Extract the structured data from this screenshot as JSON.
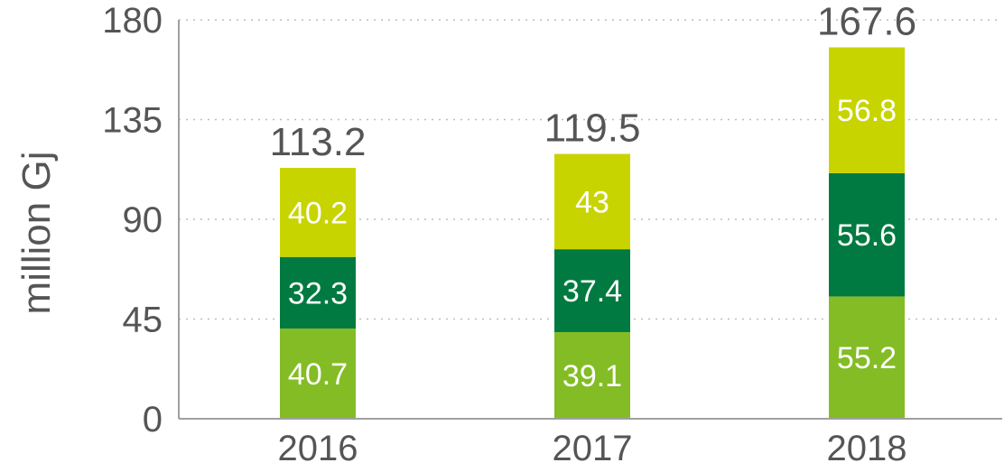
{
  "chart_data": {
    "type": "bar",
    "stacked": true,
    "categories": [
      "2016",
      "2017",
      "2018"
    ],
    "series": [
      {
        "values": [
          40.7,
          39.1,
          55.2
        ],
        "color": "#84BC26"
      },
      {
        "values": [
          32.3,
          37.4,
          55.6
        ],
        "color": "#007A40"
      },
      {
        "values": [
          40.2,
          43,
          56.8
        ],
        "color": "#C8D400"
      }
    ],
    "series_labels": [
      [
        "40.7",
        "39.1",
        "55.2"
      ],
      [
        "32.3",
        "37.4",
        "55.6"
      ],
      [
        "40.2",
        "43",
        "56.8"
      ]
    ],
    "totals": [
      "113.2",
      "119.5",
      "167.6"
    ],
    "ylabel": "million Gj",
    "ylim": [
      0,
      180
    ],
    "yticks": [
      "0",
      "45",
      "90",
      "135",
      "180"
    ],
    "ytick_values": [
      0,
      45,
      90,
      135,
      180
    ],
    "grid": true,
    "legend": "none"
  }
}
